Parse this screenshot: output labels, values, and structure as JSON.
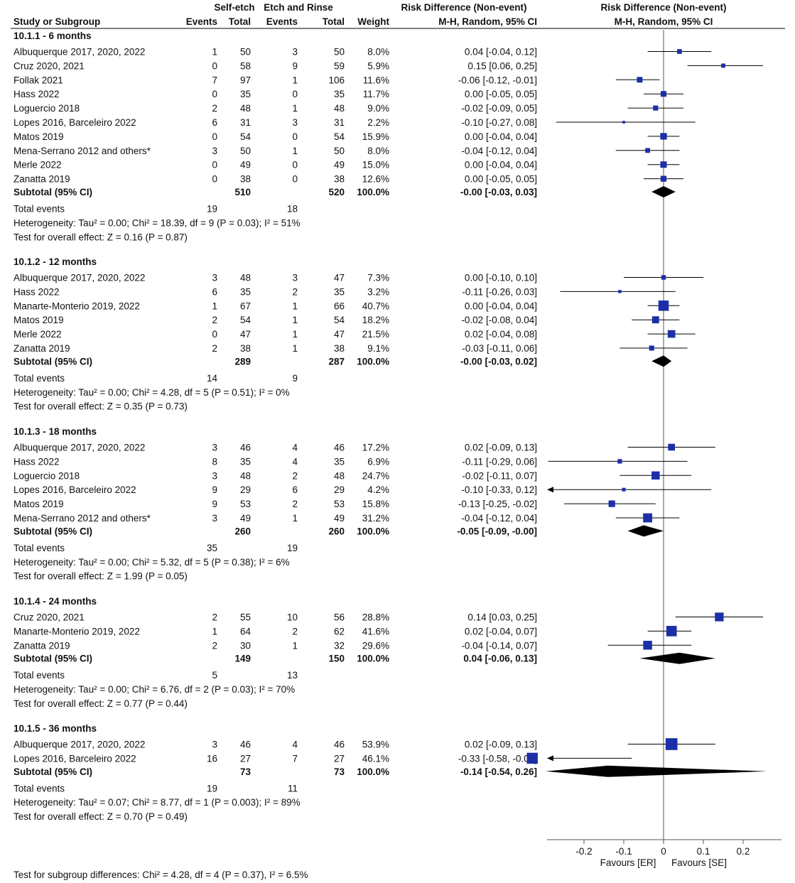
{
  "headers": {
    "study": "Study or Subgroup",
    "group1": "Self-etch",
    "group2": "Etch and Rinse",
    "events": "Events",
    "total": "Total",
    "weight": "Weight",
    "rd_title": "Risk Difference (Non-event)",
    "rd_method": "M-H, Random, 95% CI",
    "plot_title": "Risk Difference (Non-event)",
    "plot_method": "M-H, Random, 95% CI"
  },
  "chart_data": {
    "type": "forest",
    "axis": {
      "ticks": [
        -0.2,
        -0.1,
        0,
        0.1,
        0.2
      ],
      "tick_labels": [
        "-0.2",
        "-0.1",
        "0",
        "0.1",
        "0.2"
      ],
      "xlim": [
        -0.3,
        0.3
      ],
      "favours_left": "Favours [ER]",
      "favours_right": "Favours [SE]"
    },
    "subgroups": [
      {
        "title": "10.1.1 - 6 months",
        "studies": [
          {
            "name": "Albuquerque 2017, 2020, 2022",
            "e1": "1",
            "t1": "50",
            "e2": "3",
            "t2": "50",
            "weight": "8.0%",
            "ci": "0.04 [-0.04, 0.12]",
            "est": 0.04,
            "lo": -0.04,
            "hi": 0.12,
            "w": 8.0
          },
          {
            "name": "Cruz 2020, 2021",
            "e1": "0",
            "t1": "58",
            "e2": "9",
            "t2": "59",
            "weight": "5.9%",
            "ci": "0.15 [0.06, 0.25]",
            "est": 0.15,
            "lo": 0.06,
            "hi": 0.25,
            "w": 5.9
          },
          {
            "name": "Follak 2021",
            "e1": "7",
            "t1": "97",
            "e2": "1",
            "t2": "106",
            "weight": "11.6%",
            "ci": "-0.06 [-0.12, -0.01]",
            "est": -0.06,
            "lo": -0.12,
            "hi": -0.01,
            "w": 11.6
          },
          {
            "name": "Hass 2022",
            "e1": "0",
            "t1": "35",
            "e2": "0",
            "t2": "35",
            "weight": "11.7%",
            "ci": "0.00 [-0.05, 0.05]",
            "est": 0.0,
            "lo": -0.05,
            "hi": 0.05,
            "w": 11.7
          },
          {
            "name": "Loguercio 2018",
            "e1": "2",
            "t1": "48",
            "e2": "1",
            "t2": "48",
            "weight": "9.0%",
            "ci": "-0.02 [-0.09, 0.05]",
            "est": -0.02,
            "lo": -0.09,
            "hi": 0.05,
            "w": 9.0
          },
          {
            "name": "Lopes 2016, Barceleiro 2022",
            "e1": "6",
            "t1": "31",
            "e2": "3",
            "t2": "31",
            "weight": "2.2%",
            "ci": "-0.10 [-0.27, 0.08]",
            "est": -0.1,
            "lo": -0.27,
            "hi": 0.08,
            "w": 2.2
          },
          {
            "name": "Matos 2019",
            "e1": "0",
            "t1": "54",
            "e2": "0",
            "t2": "54",
            "weight": "15.9%",
            "ci": "0.00 [-0.04, 0.04]",
            "est": 0.0,
            "lo": -0.04,
            "hi": 0.04,
            "w": 15.9
          },
          {
            "name": "Mena-Serrano 2012 and others*",
            "e1": "3",
            "t1": "50",
            "e2": "1",
            "t2": "50",
            "weight": "8.0%",
            "ci": "-0.04 [-0.12, 0.04]",
            "est": -0.04,
            "lo": -0.12,
            "hi": 0.04,
            "w": 8.0
          },
          {
            "name": "Merle 2022",
            "e1": "0",
            "t1": "49",
            "e2": "0",
            "t2": "49",
            "weight": "15.0%",
            "ci": "0.00 [-0.04, 0.04]",
            "est": 0.0,
            "lo": -0.04,
            "hi": 0.04,
            "w": 15.0
          },
          {
            "name": "Zanatta 2019",
            "e1": "0",
            "t1": "38",
            "e2": "0",
            "t2": "38",
            "weight": "12.6%",
            "ci": "0.00 [-0.05, 0.05]",
            "est": 0.0,
            "lo": -0.05,
            "hi": 0.05,
            "w": 12.6
          }
        ],
        "subtotal": {
          "label": "Subtotal (95% CI)",
          "t1": "510",
          "t2": "520",
          "weight": "100.0%",
          "ci": "-0.00 [-0.03, 0.03]",
          "est": 0.0,
          "lo": -0.03,
          "hi": 0.03
        },
        "total_events": {
          "label": "Total events",
          "e1": "19",
          "e2": "18"
        },
        "heterogeneity": "Heterogeneity: Tau² = 0.00; Chi² = 18.39, df = 9 (P = 0.03); I² = 51%",
        "overall": "Test for overall effect: Z = 0.16 (P = 0.87)"
      },
      {
        "title": "10.1.2 - 12 months",
        "studies": [
          {
            "name": "Albuquerque 2017, 2020, 2022",
            "e1": "3",
            "t1": "48",
            "e2": "3",
            "t2": "47",
            "weight": "7.3%",
            "ci": "0.00 [-0.10, 0.10]",
            "est": 0.0,
            "lo": -0.1,
            "hi": 0.1,
            "w": 7.3
          },
          {
            "name": "Hass 2022",
            "e1": "6",
            "t1": "35",
            "e2": "2",
            "t2": "35",
            "weight": "3.2%",
            "ci": "-0.11 [-0.26, 0.03]",
            "est": -0.11,
            "lo": -0.26,
            "hi": 0.03,
            "w": 3.2
          },
          {
            "name": "Manarte-Monterio 2019, 2022",
            "e1": "1",
            "t1": "67",
            "e2": "1",
            "t2": "66",
            "weight": "40.7%",
            "ci": "0.00 [-0.04, 0.04]",
            "est": 0.0,
            "lo": -0.04,
            "hi": 0.04,
            "w": 40.7
          },
          {
            "name": "Matos 2019",
            "e1": "2",
            "t1": "54",
            "e2": "1",
            "t2": "54",
            "weight": "18.2%",
            "ci": "-0.02 [-0.08, 0.04]",
            "est": -0.02,
            "lo": -0.08,
            "hi": 0.04,
            "w": 18.2
          },
          {
            "name": "Merle 2022",
            "e1": "0",
            "t1": "47",
            "e2": "1",
            "t2": "47",
            "weight": "21.5%",
            "ci": "0.02 [-0.04, 0.08]",
            "est": 0.02,
            "lo": -0.04,
            "hi": 0.08,
            "w": 21.5
          },
          {
            "name": "Zanatta 2019",
            "e1": "2",
            "t1": "38",
            "e2": "1",
            "t2": "38",
            "weight": "9.1%",
            "ci": "-0.03 [-0.11, 0.06]",
            "est": -0.03,
            "lo": -0.11,
            "hi": 0.06,
            "w": 9.1
          }
        ],
        "subtotal": {
          "label": "Subtotal (95% CI)",
          "t1": "289",
          "t2": "287",
          "weight": "100.0%",
          "ci": "-0.00 [-0.03, 0.02]",
          "est": 0.0,
          "lo": -0.03,
          "hi": 0.02
        },
        "total_events": {
          "label": "Total events",
          "e1": "14",
          "e2": "9"
        },
        "heterogeneity": "Heterogeneity: Tau² = 0.00; Chi² = 4.28, df = 5 (P = 0.51); I² = 0%",
        "overall": "Test for overall effect: Z = 0.35 (P = 0.73)"
      },
      {
        "title": "10.1.3 - 18 months",
        "studies": [
          {
            "name": "Albuquerque 2017, 2020, 2022",
            "e1": "3",
            "t1": "46",
            "e2": "4",
            "t2": "46",
            "weight": "17.2%",
            "ci": "0.02 [-0.09, 0.13]",
            "est": 0.02,
            "lo": -0.09,
            "hi": 0.13,
            "w": 17.2
          },
          {
            "name": "Hass 2022",
            "e1": "8",
            "t1": "35",
            "e2": "4",
            "t2": "35",
            "weight": "6.9%",
            "ci": "-0.11 [-0.29, 0.06]",
            "est": -0.11,
            "lo": -0.29,
            "hi": 0.06,
            "w": 6.9
          },
          {
            "name": "Loguercio 2018",
            "e1": "3",
            "t1": "48",
            "e2": "2",
            "t2": "48",
            "weight": "24.7%",
            "ci": "-0.02 [-0.11, 0.07]",
            "est": -0.02,
            "lo": -0.11,
            "hi": 0.07,
            "w": 24.7
          },
          {
            "name": "Lopes 2016, Barceleiro 2022",
            "e1": "9",
            "t1": "29",
            "e2": "6",
            "t2": "29",
            "weight": "4.2%",
            "ci": "-0.10 [-0.33, 0.12]",
            "est": -0.1,
            "lo": -0.33,
            "hi": 0.12,
            "w": 4.2
          },
          {
            "name": "Matos 2019",
            "e1": "9",
            "t1": "53",
            "e2": "2",
            "t2": "53",
            "weight": "15.8%",
            "ci": "-0.13 [-0.25, -0.02]",
            "est": -0.13,
            "lo": -0.25,
            "hi": -0.02,
            "w": 15.8
          },
          {
            "name": "Mena-Serrano 2012 and others*",
            "e1": "3",
            "t1": "49",
            "e2": "1",
            "t2": "49",
            "weight": "31.2%",
            "ci": "-0.04 [-0.12, 0.04]",
            "est": -0.04,
            "lo": -0.12,
            "hi": 0.04,
            "w": 31.2
          }
        ],
        "subtotal": {
          "label": "Subtotal (95% CI)",
          "t1": "260",
          "t2": "260",
          "weight": "100.0%",
          "ci": "-0.05 [-0.09, -0.00]",
          "est": -0.05,
          "lo": -0.09,
          "hi": -0.0
        },
        "total_events": {
          "label": "Total events",
          "e1": "35",
          "e2": "19"
        },
        "heterogeneity": "Heterogeneity: Tau² = 0.00; Chi² = 5.32, df = 5 (P = 0.38); I² = 6%",
        "overall": "Test for overall effect: Z = 1.99 (P = 0.05)"
      },
      {
        "title": "10.1.4 - 24 months",
        "studies": [
          {
            "name": "Cruz 2020, 2021",
            "e1": "2",
            "t1": "55",
            "e2": "10",
            "t2": "56",
            "weight": "28.8%",
            "ci": "0.14 [0.03, 0.25]",
            "est": 0.14,
            "lo": 0.03,
            "hi": 0.25,
            "w": 28.8
          },
          {
            "name": "Manarte-Monterio 2019, 2022",
            "e1": "1",
            "t1": "64",
            "e2": "2",
            "t2": "62",
            "weight": "41.6%",
            "ci": "0.02 [-0.04, 0.07]",
            "est": 0.02,
            "lo": -0.04,
            "hi": 0.07,
            "w": 41.6
          },
          {
            "name": "Zanatta 2019",
            "e1": "2",
            "t1": "30",
            "e2": "1",
            "t2": "32",
            "weight": "29.6%",
            "ci": "-0.04 [-0.14, 0.07]",
            "est": -0.04,
            "lo": -0.14,
            "hi": 0.07,
            "w": 29.6
          }
        ],
        "subtotal": {
          "label": "Subtotal (95% CI)",
          "t1": "149",
          "t2": "150",
          "weight": "100.0%",
          "ci": "0.04 [-0.06, 0.13]",
          "est": 0.04,
          "lo": -0.06,
          "hi": 0.13
        },
        "total_events": {
          "label": "Total events",
          "e1": "5",
          "e2": "13"
        },
        "heterogeneity": "Heterogeneity: Tau² = 0.00; Chi² = 6.76, df = 2 (P = 0.03); I² = 70%",
        "overall": "Test for overall effect: Z = 0.77 (P = 0.44)"
      },
      {
        "title": "10.1.5 - 36 months",
        "studies": [
          {
            "name": "Albuquerque 2017, 2020, 2022",
            "e1": "3",
            "t1": "46",
            "e2": "4",
            "t2": "46",
            "weight": "53.9%",
            "ci": "0.02 [-0.09, 0.13]",
            "est": 0.02,
            "lo": -0.09,
            "hi": 0.13,
            "w": 53.9
          },
          {
            "name": "Lopes 2016, Barceleiro 2022",
            "e1": "16",
            "t1": "27",
            "e2": "7",
            "t2": "27",
            "weight": "46.1%",
            "ci": "-0.33 [-0.58, -0.08]",
            "est": -0.33,
            "lo": -0.58,
            "hi": -0.08,
            "w": 46.1
          }
        ],
        "subtotal": {
          "label": "Subtotal (95% CI)",
          "t1": "73",
          "t2": "73",
          "weight": "100.0%",
          "ci": "-0.14 [-0.54, 0.26]",
          "est": -0.14,
          "lo": -0.54,
          "hi": 0.26
        },
        "total_events": {
          "label": "Total events",
          "e1": "19",
          "e2": "11"
        },
        "heterogeneity": "Heterogeneity: Tau² = 0.07; Chi² = 8.77, df = 1 (P = 0.003); I² = 89%",
        "overall": "Test for overall effect: Z = 0.70 (P = 0.49)"
      }
    ],
    "subgroup_differences": "Test for subgroup differences: Chi² = 4.28, df = 4 (P = 0.37), I² = 6.5%",
    "colors": {
      "marker": "#1c2fa8",
      "diamond": "#000000",
      "axis": "#555555"
    }
  }
}
